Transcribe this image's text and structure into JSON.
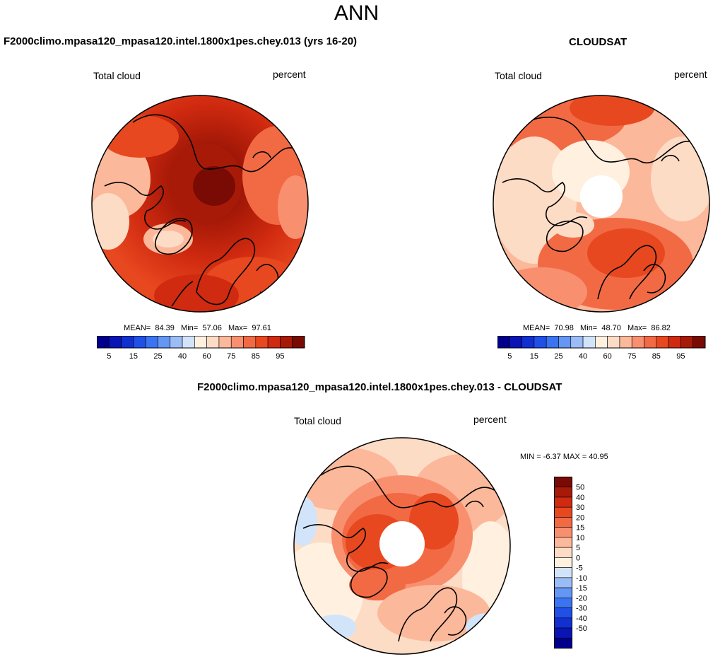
{
  "header": {
    "title": "ANN"
  },
  "panels": [
    {
      "title": "F2000climo.mpasa120_mpasa120.intel.1800x1pes.chey.013 (yrs 16-20)",
      "variable": "Total cloud",
      "units": "percent",
      "stats": {
        "mean_label": "MEAN=",
        "mean": "84.39",
        "min_label": "Min=",
        "min": "57.06",
        "max_label": "Max=",
        "max": "97.61"
      }
    },
    {
      "title": "CLOUDSAT",
      "variable": "Total cloud",
      "units": "percent",
      "stats": {
        "mean_label": "MEAN=",
        "mean": "70.98",
        "min_label": "Min=",
        "min": "48.70",
        "max_label": "Max=",
        "max": "86.82"
      }
    },
    {
      "title": "F2000climo.mpasa120_mpasa120.intel.1800x1pes.chey.013 - CLOUDSAT",
      "variable": "Total cloud",
      "units": "percent",
      "stats_text": "MIN =  -6.37 MAX =  40.95"
    }
  ],
  "colorbars": {
    "field": {
      "colors": [
        "#00008b",
        "#0a14b4",
        "#1030d0",
        "#2050e6",
        "#3a74f0",
        "#6496f4",
        "#9cbcf6",
        "#d2e4fa",
        "#fff0e0",
        "#fddcc6",
        "#fcb89a",
        "#f89070",
        "#f26a44",
        "#e84820",
        "#d02a10",
        "#a81a08",
        "#7a0a04"
      ],
      "tick_labels": [
        "5",
        "15",
        "25",
        "40",
        "60",
        "75",
        "85",
        "95"
      ]
    },
    "diff": {
      "colors": [
        "#00008b",
        "#0a14b4",
        "#1030d0",
        "#2050e6",
        "#3a74f0",
        "#6496f4",
        "#9cbcf6",
        "#d2e4fa",
        "#fff0e0",
        "#fddcc6",
        "#fcb89a",
        "#f89070",
        "#f26a44",
        "#e84820",
        "#d02a10",
        "#a81a08",
        "#7a0a04"
      ],
      "tick_labels": [
        "50",
        "40",
        "30",
        "20",
        "15",
        "10",
        "5",
        "0",
        "-5",
        "-10",
        "-15",
        "-20",
        "-30",
        "-40",
        "-50"
      ]
    }
  }
}
